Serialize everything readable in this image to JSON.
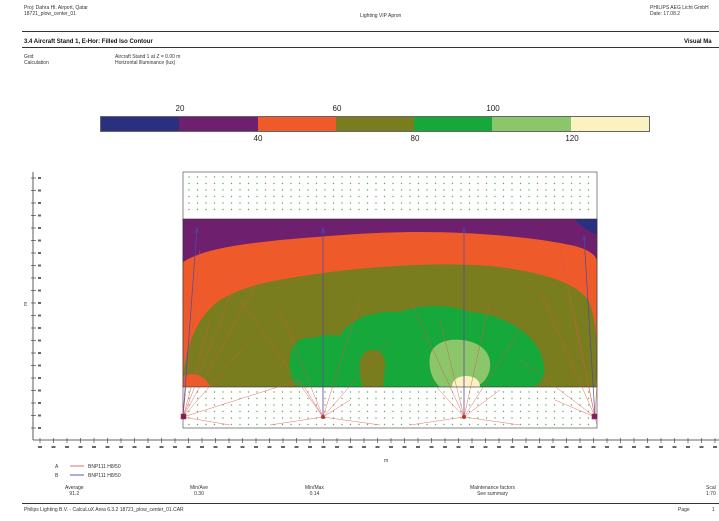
{
  "header": {
    "left_line1": "Proj: Dahra Hl. Airport, Qatar",
    "left_line2": "18721_plow_center_01",
    "center": "Lighting VIP Apron",
    "right_line1": "PHILIPS AEG Licht GmbH",
    "right_line2": "Date: 17.08.2"
  },
  "section": {
    "title": "3.4 Aircraft Stand 1, E-Hor: Filled Iso Contour",
    "right": "Visual Ma"
  },
  "meta": {
    "grid_label": "Grid",
    "grid_value": "Aircraft Stand 1 at Z = 0.00 m",
    "calc_label": "Calculation",
    "calc_value": "Horizontal Illuminance (lux)"
  },
  "legend": {
    "colors": [
      "#28307f",
      "#6e1f6e",
      "#ee5a2a",
      "#7a7d1e",
      "#16a83a",
      "#8cc66a",
      "#faf2c0"
    ],
    "labels_top": [
      "20",
      "60",
      "100"
    ],
    "labels_bottom": [
      "40",
      "80",
      "120"
    ]
  },
  "axis": {
    "xlabel": "m",
    "ylabel": "m"
  },
  "key": {
    "row1_letter": "A",
    "row1_text": "BNP111 H8/50",
    "row2_letter": "B",
    "row2_text": "BNP111 H8/50"
  },
  "stats": {
    "average_label": "Average",
    "average_value": "91.2",
    "minav_label": "Min/Ave",
    "minav_value": "0.30",
    "minmax_label": "Min/Max",
    "minmax_value": "0.14",
    "maint_label": "Maintenance factors",
    "maint_value": "See summary",
    "scale_label": "Scal",
    "scale_value": "1:70"
  },
  "footer": {
    "left": "Philips Lighting B.V. - CalcuLuX Area 6.3.2    18721_plow_center_01.CAR",
    "page_label": "Page",
    "page_value": "1"
  },
  "colors": {
    "purple": "#6e1f6e",
    "orange": "#ee5a2a",
    "olive": "#7a7d1e",
    "green": "#16a83a",
    "light_green": "#8cc66a",
    "cream": "#faf2c0",
    "navy": "#28307f"
  }
}
